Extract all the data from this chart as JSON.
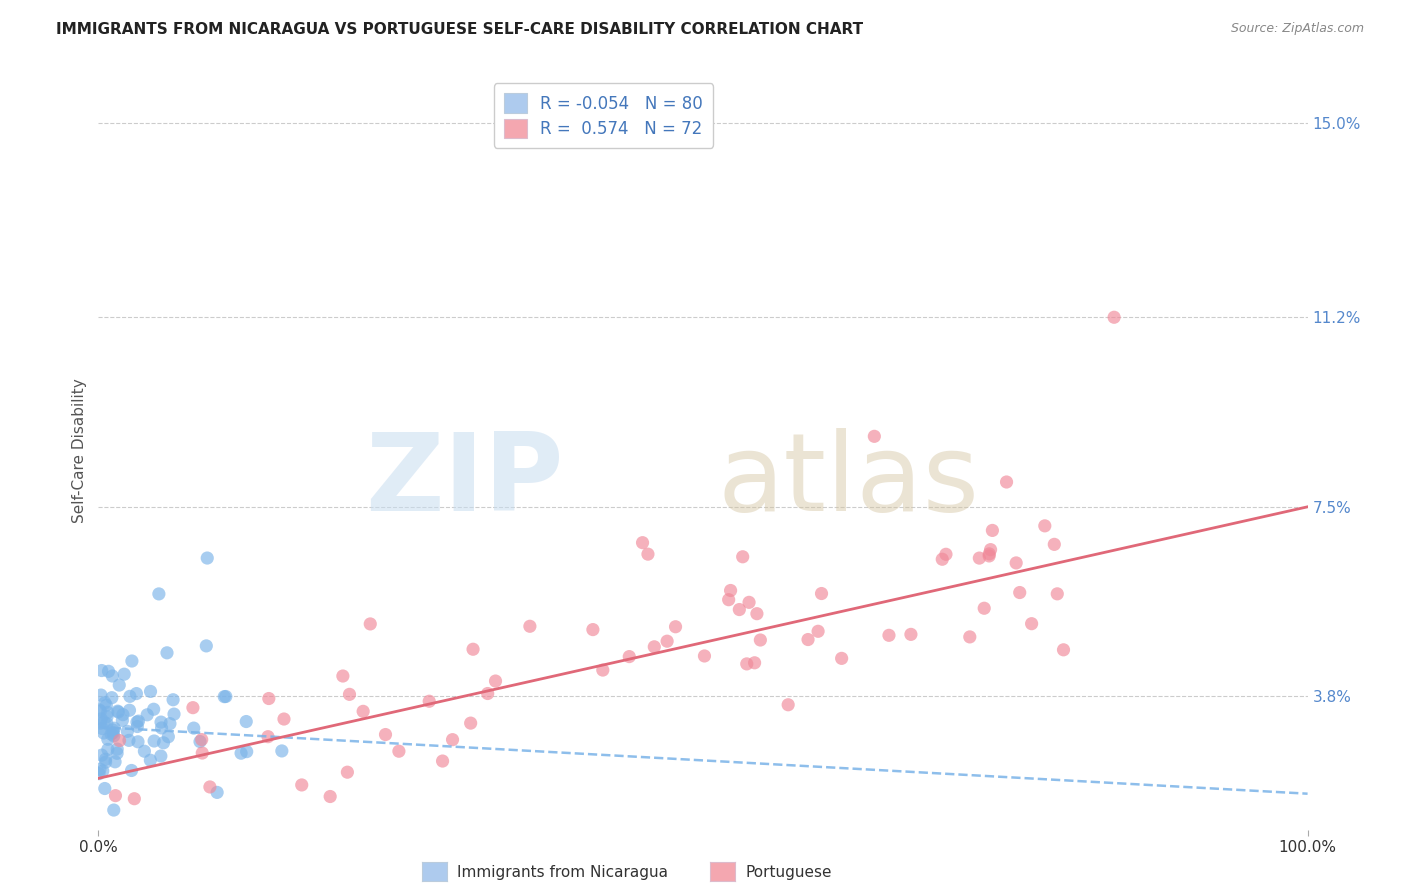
{
  "title": "IMMIGRANTS FROM NICARAGUA VS PORTUGUESE SELF-CARE DISABILITY CORRELATION CHART",
  "source": "Source: ZipAtlas.com",
  "ylabel": "Self-Care Disability",
  "y_tick_values": [
    3.8,
    7.5,
    11.2,
    15.0
  ],
  "x_min": 0.0,
  "x_max": 100.0,
  "y_min": 1.2,
  "y_max": 16.0,
  "series": [
    {
      "name": "Immigrants from Nicaragua",
      "color": "#7ab3e8",
      "R": -0.054,
      "N": 80,
      "trend_color": "#7ab3e8",
      "trend_style": "dashed",
      "x_start": 0.0,
      "y_start": 3.2,
      "x_end": 100.0,
      "y_end": 1.9
    },
    {
      "name": "Portuguese",
      "color": "#f08898",
      "R": 0.574,
      "N": 72,
      "trend_color": "#e06878",
      "trend_style": "solid",
      "x_start": 0.0,
      "y_start": 2.2,
      "x_end": 100.0,
      "y_end": 7.5
    }
  ],
  "legend_patch_colors": [
    "#aecbee",
    "#f4a7b0"
  ],
  "legend_text_color": "#4477bb",
  "background_color": "#ffffff",
  "grid_color": "#cccccc",
  "title_color": "#222222",
  "axis_label_color": "#555555",
  "right_tick_color": "#5588cc",
  "seed": 42
}
